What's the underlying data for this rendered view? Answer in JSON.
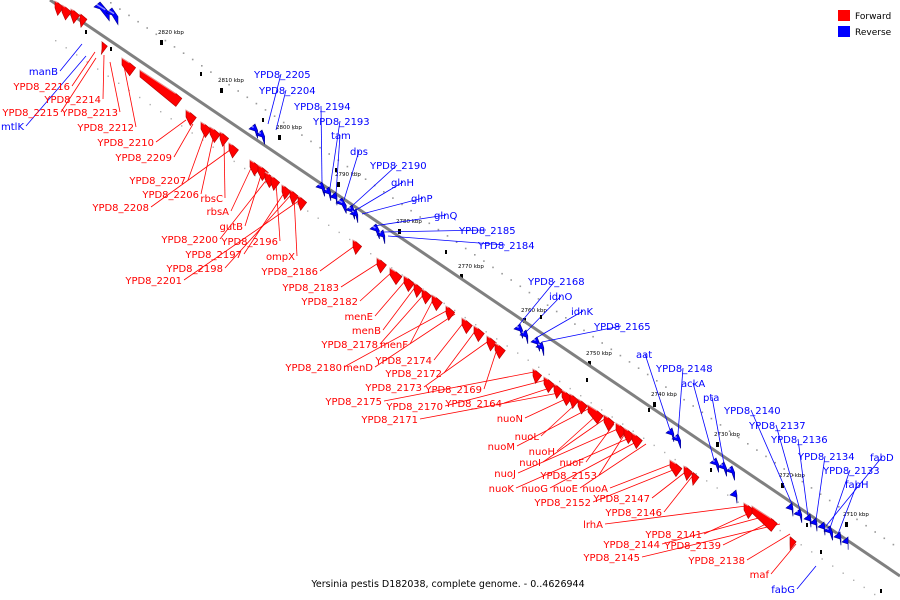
{
  "caption": "Yersinia pestis D182038, complete genome. - 0..4626944",
  "legend": [
    {
      "label": "Forward",
      "color": "#ff0000"
    },
    {
      "label": "Reverse",
      "color": "#0000ff"
    }
  ],
  "colors": {
    "forward": "#ff0000",
    "reverse": "#0000ff",
    "axis": "#808080",
    "leader_forward": "#ff0000",
    "leader_reverse": "#0000ff"
  },
  "ticks": [
    "2820 kbp",
    "2810 kbp",
    "2800 kbp",
    "2790 kbp",
    "2780 kbp",
    "2770 kbp",
    "2760 kbp",
    "2750 kbp",
    "2740 kbp",
    "2730 kbp",
    "2720 kbp",
    "2710 kbp"
  ],
  "reverse_genes": [
    "manB",
    "mtlK",
    "YPD8_2205",
    "YPD8_2204",
    "YPD8_2194",
    "YPD8_2193",
    "tam",
    "dps",
    "YPD8_2190",
    "glnH",
    "glnP",
    "glnQ",
    "YPD8_2185",
    "YPD8_2184",
    "YPD8_2168",
    "idnO",
    "idnK",
    "YPD8_2165",
    "aat",
    "YPD8_2148",
    "ackA",
    "pta",
    "YPD8_2140",
    "YPD8_2137",
    "YPD8_2136",
    "YPD8_2134",
    "fabD",
    "YPD8_2133",
    "fabH",
    "fabG"
  ],
  "forward_genes": [
    "YPD8_2216",
    "YPD8_2214",
    "YPD8_2215",
    "YPD8_2213",
    "YPD8_2212",
    "YPD8_2210",
    "YPD8_2209",
    "YPD8_2207",
    "YPD8_2206",
    "rbsC",
    "YPD8_2208",
    "rbsA",
    "gutB",
    "YPD8_2200",
    "YPD8_2196",
    "YPD8_2197",
    "ompX",
    "YPD8_2198",
    "YPD8_2186",
    "YPD8_2201",
    "YPD8_2183",
    "YPD8_2182",
    "menE",
    "menB",
    "YPD8_2178",
    "menF",
    "YPD8_2180",
    "menD",
    "YPD8_2174",
    "YPD8_2172",
    "YPD8_2173",
    "YPD8_2169",
    "YPD8_2175",
    "YPD8_2170",
    "YPD8_2164",
    "YPD8_2171",
    "nuoN",
    "nuoL",
    "nuoM",
    "nuoH",
    "nuoI",
    "nuoF",
    "nuoJ",
    "YPD8_2153",
    "nuoK",
    "nuoG",
    "nuoE",
    "nuoA",
    "YPD8_2152",
    "YPD8_2147",
    "YPD8_2146",
    "lrhA",
    "YPD8_2141",
    "YPD8_2144",
    "YPD8_2139",
    "YPD8_2145",
    "YPD8_2138",
    "maf"
  ]
}
